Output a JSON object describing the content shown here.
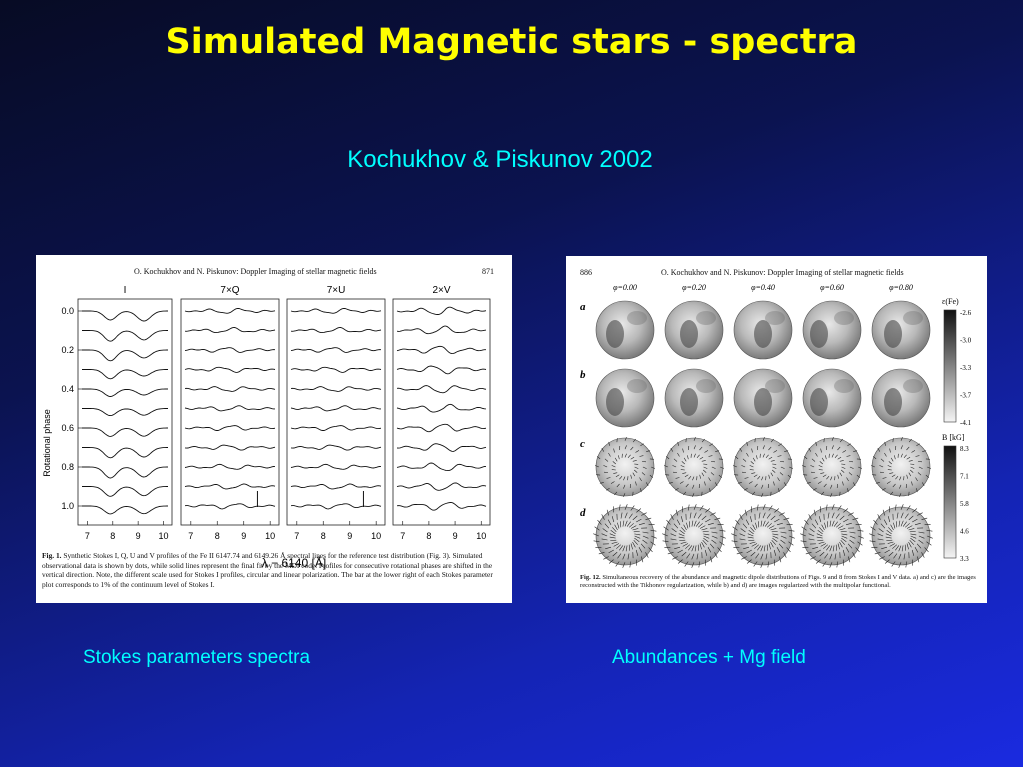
{
  "slide": {
    "title": "Simulated Magnetic stars - spectra",
    "subtitle": "Kochukhov & Piskunov 2002",
    "caption_left": "Stokes parameters spectra",
    "caption_right": "Abundances + Mg field"
  },
  "figure_left": {
    "header": "O. Kochukhov and N. Piskunov: Doppler Imaging of stellar magnetic fields",
    "page_number": "871",
    "panel_labels": [
      "I",
      "7×Q",
      "7×U",
      "2×V"
    ],
    "y_axis_label": "Rotational phase",
    "y_ticks": [
      "0.0",
      "0.2",
      "0.4",
      "0.6",
      "0.8",
      "1.0"
    ],
    "x_ticks": [
      "7",
      "8",
      "9",
      "10"
    ],
    "x_axis_label": "λ − 6140 [Å]",
    "caption_label": "Fig. 1.",
    "caption_text": "Synthetic Stokes I, Q, U and V profiles of the Fe II 6147.74 and 6149.26 Å spectral lines for the reference test distribution (Fig. 3). Simulated observational data is shown by dots, while solid lines represent the final fit by the MDI code. Profiles for consecutive rotational phases are shifted in the vertical direction. Note, the different scale used for Stokes I profiles, circular and linear polarization. The bar at the lower right of each Stokes parameter plot corresponds to 1% of the continuum level of Stokes I."
  },
  "figure_right": {
    "page_number": "886",
    "header": "O. Kochukhov and N. Piskunov: Doppler Imaging of stellar magnetic fields",
    "phases": [
      "φ=0.00",
      "φ=0.20",
      "φ=0.40",
      "φ=0.60",
      "φ=0.80"
    ],
    "row_labels": [
      "a",
      "b",
      "c",
      "d"
    ],
    "colorbar1_label": "ε(Fe)",
    "colorbar1_ticks": [
      "-2.6",
      "-3.0",
      "-3.3",
      "-3.7",
      "-4.1"
    ],
    "colorbar2_label": "B [kG]",
    "colorbar2_ticks": [
      "8.3",
      "7.1",
      "5.8",
      "4.6",
      "3.3"
    ],
    "caption_label": "Fig. 12.",
    "caption_text": "Simultaneous recovery of the abundance and magnetic dipole distributions of Figs. 9 and 8 from Stokes I and V data. a) and c) are the images reconstructed with the Tikhonov regularization, while b) and d) are images regularized with the multipolar functional."
  }
}
